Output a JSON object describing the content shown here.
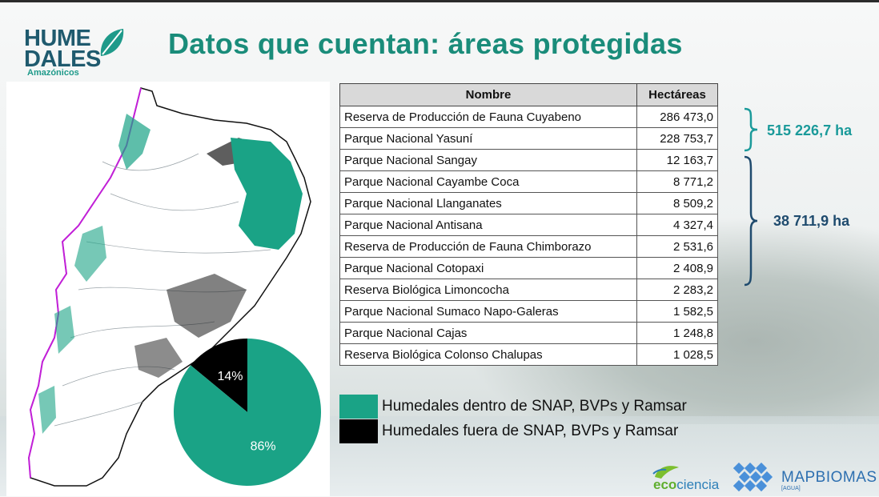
{
  "header": {
    "logo_line1": "HUME",
    "logo_line2": "DALES",
    "logo_sub": "Amazónicos",
    "title": "Datos que cuentan: áreas protegidas"
  },
  "table": {
    "headers": [
      "Nombre",
      "Hectáreas"
    ],
    "rows": [
      {
        "name": "Reserva de Producción de Fauna Cuyabeno",
        "value": "286 473,0"
      },
      {
        "name": "Parque Nacional Yasuní",
        "value": "228 753,7"
      },
      {
        "name": "Parque Nacional Sangay",
        "value": "12 163,7"
      },
      {
        "name": "Parque Nacional Cayambe Coca",
        "value": "8 771,2"
      },
      {
        "name": "Parque Nacional Llanganates",
        "value": "8 509,2"
      },
      {
        "name": "Parque Nacional Antisana",
        "value": "4 327,4"
      },
      {
        "name": "Reserva de Producción de Fauna Chimborazo",
        "value": "2 531,6"
      },
      {
        "name": "Parque Nacional Cotopaxi",
        "value": "2 408,9"
      },
      {
        "name": "Reserva Biológica Limoncocha",
        "value": "2 283,2"
      },
      {
        "name": "Parque Nacional Sumaco Napo-Galeras",
        "value": "1 582,5"
      },
      {
        "name": "Parque Nacional Cajas",
        "value": "1 248,8"
      },
      {
        "name": "Reserva Biológica Colonso Chalupas",
        "value": "1 028,5"
      }
    ]
  },
  "totals": {
    "group1": "515 226,7 ha",
    "group2": "38 711,9 ha"
  },
  "legend": [
    {
      "label": "Humedales dentro de SNAP, BVPs y Ramsar",
      "color": "#1aa386"
    },
    {
      "label": "Humedales fuera de SNAP, BVPs y Ramsar",
      "color": "#000000"
    }
  ],
  "chart_data": {
    "type": "pie",
    "slices": [
      {
        "label": "86%",
        "value": 86,
        "color": "#1aa386"
      },
      {
        "label": "14%",
        "value": 14,
        "color": "#000000"
      }
    ]
  },
  "colors": {
    "brand_teal": "#1a8c7a",
    "brace_teal": "#1a9a9a",
    "brace_navy": "#1f4b6e",
    "total1_color": "#1a9a9a",
    "total2_color": "#1f4b6e"
  },
  "footer": {
    "eco_part1": "eco",
    "eco_part2": "ciencia",
    "mapbiomas": "MAPBIOMAS",
    "mapbiomas_sub": "[AGUA]"
  }
}
